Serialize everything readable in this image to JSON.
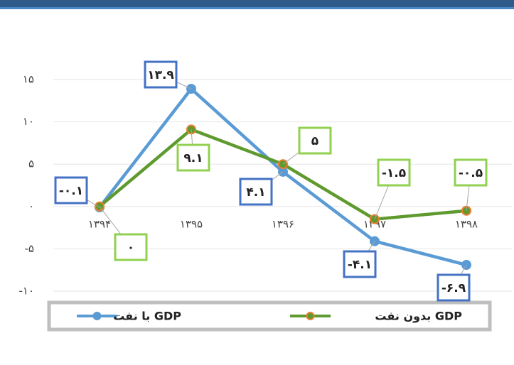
{
  "chart_data": {
    "type": "line",
    "categories": [
      "۱۳۹۴",
      "۱۳۹۵",
      "۱۳۹۶",
      "۱۳۹۷",
      "۱۳۹۸"
    ],
    "series": [
      {
        "name": "GDP با نفت",
        "color": "#5b9bd5",
        "values": [
          -0.1,
          13.9,
          4.1,
          -4.1,
          -6.9
        ],
        "value_labels": [
          "-۰.۱",
          "۱۳.۹",
          "۴.۱",
          "-۴.۱",
          "-۶.۹"
        ]
      },
      {
        "name": "GDP بدون نفت",
        "color": "#5e9a2e",
        "values": [
          0,
          9.1,
          5,
          -1.5,
          -0.5
        ],
        "value_labels": [
          "۰",
          "۹.۱",
          "۵",
          "-۱.۵",
          "-۰.۵"
        ]
      }
    ],
    "ylim": [
      -10,
      15
    ],
    "yticks": [
      {
        "value": -10,
        "label": "-۱۰"
      },
      {
        "value": -5,
        "label": "-۵"
      },
      {
        "value": 0,
        "label": "۰"
      },
      {
        "value": 5,
        "label": "۵"
      },
      {
        "value": 10,
        "label": "۱۰"
      },
      {
        "value": 15,
        "label": "۱۵"
      }
    ],
    "grid": true
  }
}
